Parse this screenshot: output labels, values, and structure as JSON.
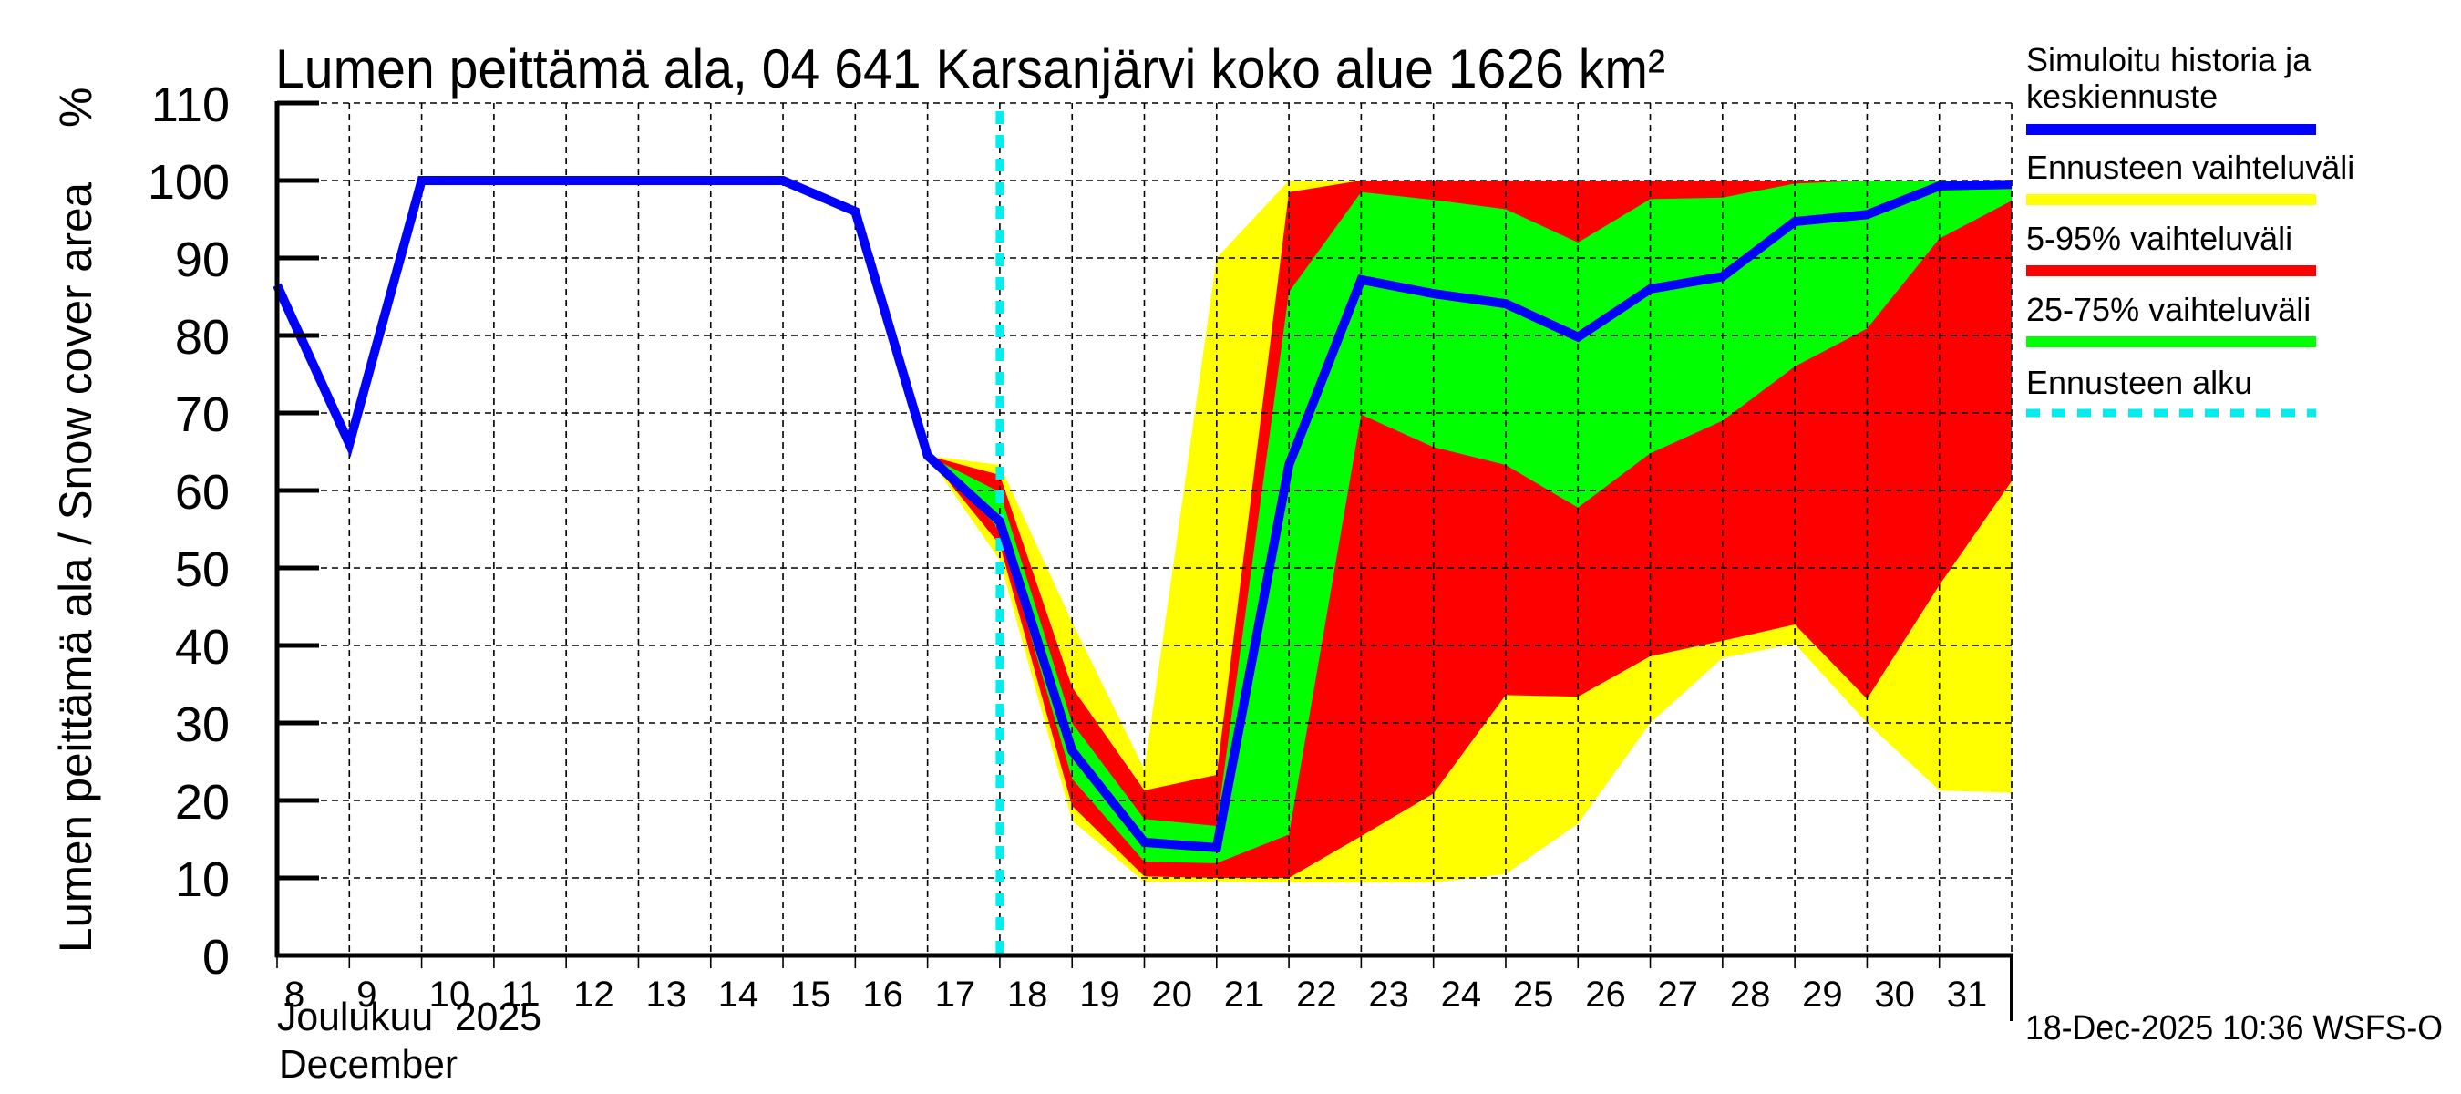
{
  "chart_data": {
    "type": "area",
    "title": "Lumen peittämä ala, 04 641 Karsanjärvi koko alue 1626 km²",
    "ylabel": "Lumen peittämä ala / Snow cover area",
    "yunit": "%",
    "xlabel_line1": "Joulukuu  2025",
    "xlabel_line2": "December",
    "ylim": [
      0,
      110
    ],
    "yticks": [
      0,
      10,
      20,
      30,
      40,
      50,
      60,
      70,
      80,
      90,
      100,
      110
    ],
    "xlim": [
      8,
      32
    ],
    "xtick_labels": [
      "8",
      "9",
      "10",
      "11",
      "12",
      "13",
      "14",
      "15",
      "16",
      "17",
      "18",
      "19",
      "20",
      "21",
      "22",
      "23",
      "24",
      "25",
      "26",
      "27",
      "28",
      "29",
      "30",
      "31"
    ],
    "grid": true,
    "legend_position": "right",
    "forecast_start_day": 18,
    "timestamp": "18-Dec-2025 10:36 WSFS-O",
    "x": [
      8,
      9,
      10,
      11,
      12,
      13,
      14,
      15,
      16,
      17,
      18,
      19,
      20,
      21,
      22,
      23,
      24,
      25,
      26,
      27,
      28,
      29,
      30,
      31,
      32
    ],
    "series": [
      {
        "name": "Simuloitu historia ja keskiennuste",
        "kind": "line",
        "color": "#0000ff",
        "values": [
          86.5,
          66,
          100,
          100,
          100,
          100,
          100,
          100,
          96,
          64.5,
          56,
          26.4,
          14.6,
          13.9,
          63.3,
          87.2,
          85.4,
          84.1,
          79.8,
          86,
          87.6,
          94.7,
          95.6,
          99.3,
          99.5
        ]
      }
    ],
    "bands": [
      {
        "name": "Ennusteen vaihteluväli",
        "color": "#ffff00",
        "x": [
          17,
          18,
          19,
          20,
          21,
          22,
          23,
          24,
          25,
          26,
          27,
          28,
          29,
          30,
          31,
          32
        ],
        "low": [
          64.5,
          51,
          17.4,
          9.5,
          9.5,
          9.4,
          9.4,
          9.4,
          10.5,
          17,
          30,
          38.4,
          40.2,
          30,
          21.3,
          21
        ],
        "high": [
          64.5,
          63.3,
          43,
          24,
          90,
          100,
          100,
          100,
          100,
          100,
          100,
          100,
          100,
          100,
          100,
          100
        ]
      },
      {
        "name": "5-95% vaihteluväli",
        "color": "#ff0000",
        "x": [
          17,
          18,
          19,
          20,
          21,
          22,
          23,
          24,
          25,
          26,
          27,
          28,
          29,
          30,
          31,
          32
        ],
        "low": [
          64.5,
          53,
          19.3,
          10.2,
          10,
          10,
          15.4,
          20.9,
          33.6,
          33.4,
          38.6,
          40.6,
          42.7,
          33.1,
          47.8,
          61.2
        ],
        "high": [
          64.5,
          62,
          34.6,
          21.3,
          23.3,
          98.5,
          100,
          100,
          100,
          100,
          100,
          100,
          100,
          100,
          100,
          100
        ]
      },
      {
        "name": "25-75% vaihteluväli",
        "color": "#00ff00",
        "x": [
          17,
          18,
          19,
          20,
          21,
          22,
          23,
          24,
          25,
          26,
          27,
          28,
          29,
          30,
          31,
          32
        ],
        "low": [
          64.5,
          55,
          22.8,
          12.1,
          11.9,
          15.6,
          69.8,
          65.6,
          63.3,
          57.8,
          64.8,
          69,
          76,
          80.9,
          92.5,
          97.4
        ],
        "high": [
          64.5,
          59.8,
          30,
          17.6,
          16.7,
          85.6,
          98.5,
          97.5,
          96.3,
          92,
          97.6,
          97.8,
          99.6,
          100,
          100,
          100
        ]
      }
    ],
    "legend": [
      {
        "label_lines": [
          "Simuloitu historia ja",
          "keskiennuste"
        ],
        "color": "#0000ff",
        "style": "solid"
      },
      {
        "label_lines": [
          "Ennusteen vaihteluväli"
        ],
        "color": "#ffff00",
        "style": "solid"
      },
      {
        "label_lines": [
          "5-95% vaihteluväli"
        ],
        "color": "#ff0000",
        "style": "solid"
      },
      {
        "label_lines": [
          "25-75% vaihteluväli"
        ],
        "color": "#00ff00",
        "style": "solid"
      },
      {
        "label_lines": [
          "Ennusteen alku"
        ],
        "color": "#00eeee",
        "style": "dotted"
      }
    ]
  }
}
